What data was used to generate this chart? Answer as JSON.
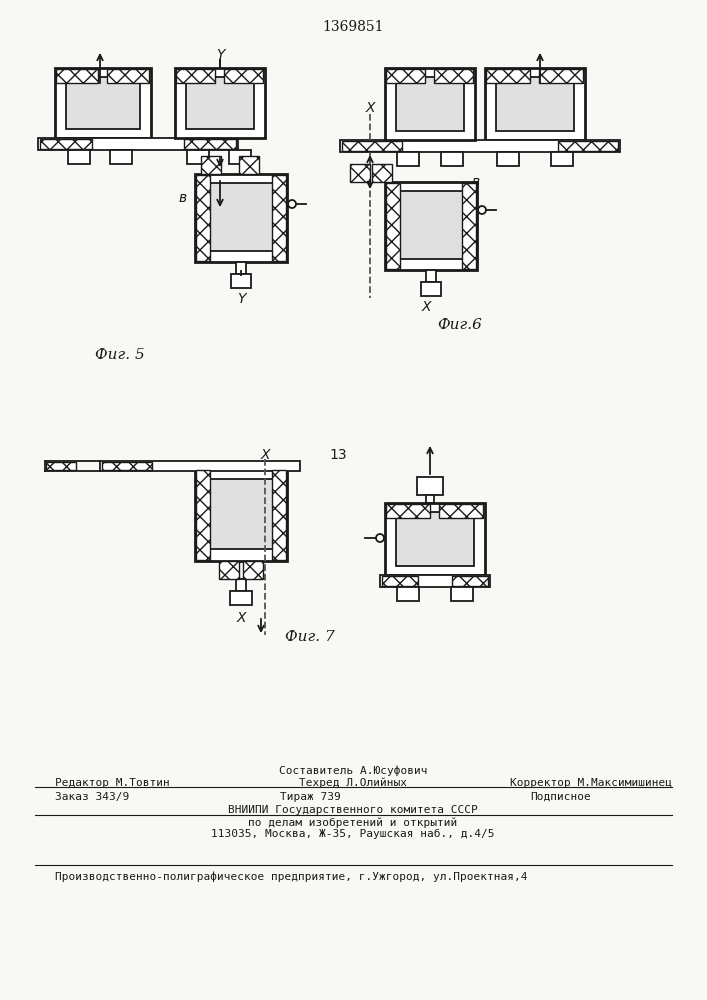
{
  "patent_number": "1369851",
  "bg_color": "#f8f8f5",
  "line_color": "#1a1a1a",
  "fig5_label": "Фиг. 5",
  "fig6_label": "Фиг.6",
  "fig7_label": "Фиг. 7",
  "footer_line0_center": "Составитель А.Юсуфович",
  "footer_line1_left": "Редактор М.Товтин",
  "footer_line1_center": "Техред Л.Олийных",
  "footer_line1_right": "Корректор М.Максимишинец",
  "footer_line2_left": "Заказ 343/9",
  "footer_line2_center": "Тираж 739",
  "footer_line2_right": "Подписное",
  "footer_line3": "ВНИИПИ Государственного комитета СССР",
  "footer_line4": "по делам изобретений и открытий",
  "footer_line5": "113035, Москва, Ж-35, Раушская наб., д.4/5",
  "footer_line6": "Производственно-полиграфическое предприятие, г.Ужгород, ул.Проектная,4"
}
